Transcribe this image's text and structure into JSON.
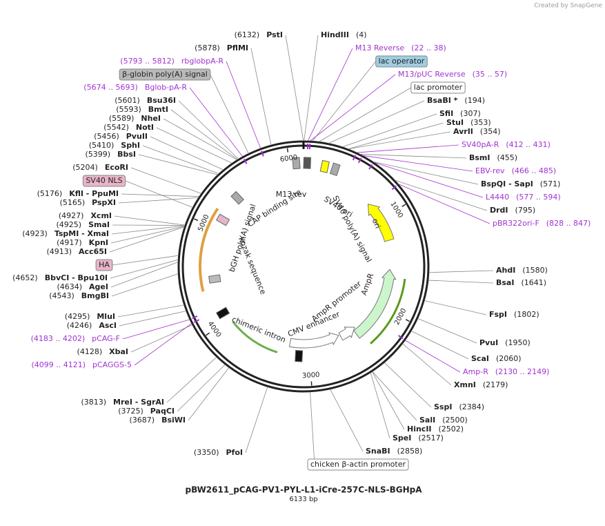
{
  "header": {
    "credit": "Created by SnapGene"
  },
  "map": {
    "labels": [
      {
        "kind": "enzyme",
        "side": "right",
        "name": "HindIII",
        "site": {
          "value": 4,
          "label": "(4)"
        }
      },
      {
        "kind": "primer",
        "side": "right",
        "name": "M13 Reverse",
        "range": "(22 .. 38)"
      },
      {
        "kind": "feature",
        "name": "lac operator",
        "color": "#9fcde2"
      },
      {
        "kind": "primer",
        "side": "right",
        "name": "M13/pUC Reverse",
        "range": "(35 .. 57)"
      },
      {
        "kind": "feature",
        "name": "lac promoter",
        "color": "#ffffff"
      },
      {
        "kind": "enzyme",
        "side": "right",
        "name": "BsaBI *",
        "site": {
          "value": 194,
          "label": "(194)"
        }
      },
      {
        "kind": "enzyme",
        "side": "right",
        "name": "SfiI",
        "site": {
          "value": 307,
          "label": "(307)"
        }
      },
      {
        "kind": "enzyme",
        "side": "right",
        "name": "StuI",
        "site": {
          "value": 353,
          "label": "(353)"
        }
      },
      {
        "kind": "enzyme",
        "side": "right",
        "name": "AvrII",
        "site": {
          "value": 354,
          "label": "(354)"
        }
      },
      {
        "kind": "primer",
        "side": "right",
        "name": "SV40pA-R",
        "range": "(412 .. 431)"
      },
      {
        "kind": "enzyme",
        "side": "right",
        "name": "BsmI",
        "site": {
          "value": 455,
          "label": "(455)"
        }
      },
      {
        "kind": "primer",
        "side": "right",
        "name": "EBV-rev",
        "range": "(466 .. 485)"
      },
      {
        "kind": "enzyme",
        "side": "right",
        "name": "BspQI - SapI",
        "site": {
          "value": 571,
          "label": "(571)"
        }
      },
      {
        "kind": "primer",
        "side": "right",
        "name": "L4440",
        "range": "(577 .. 594)"
      },
      {
        "kind": "enzyme",
        "side": "right",
        "name": "DrdI",
        "site": {
          "value": 795,
          "label": "(795)"
        }
      },
      {
        "kind": "primer",
        "side": "right",
        "name": "pBR322ori-F",
        "range": "(828 .. 847)"
      },
      {
        "kind": "enzyme",
        "side": "right",
        "name": "AhdI",
        "site": {
          "value": 1580,
          "label": "(1580)"
        }
      },
      {
        "kind": "enzyme",
        "side": "right",
        "name": "BsaI",
        "site": {
          "value": 1641,
          "label": "(1641)"
        }
      },
      {
        "kind": "enzyme",
        "side": "right",
        "name": "FspI",
        "site": {
          "value": 1802,
          "label": "(1802)"
        }
      },
      {
        "kind": "enzyme",
        "side": "right",
        "name": "PvuI",
        "site": {
          "value": 1950,
          "label": "(1950)"
        }
      },
      {
        "kind": "enzyme",
        "side": "right",
        "name": "ScaI",
        "site": {
          "value": 2060,
          "label": "(2060)"
        }
      },
      {
        "kind": "primer",
        "side": "right",
        "name": "Amp-R",
        "range": "(2130 .. 2149)"
      },
      {
        "kind": "enzyme",
        "side": "right",
        "name": "XmnI",
        "site": {
          "value": 2179,
          "label": "(2179)"
        }
      },
      {
        "kind": "enzyme",
        "side": "right",
        "name": "SspI",
        "site": {
          "value": 2384,
          "label": "(2384)"
        }
      },
      {
        "kind": "enzyme",
        "side": "right",
        "name": "SalI",
        "site": {
          "value": 2500,
          "label": "(2500)"
        }
      },
      {
        "kind": "enzyme",
        "side": "right",
        "name": "HincII",
        "site": {
          "value": 2502,
          "label": "(2502)"
        }
      },
      {
        "kind": "enzyme",
        "side": "right",
        "name": "SpeI",
        "site": {
          "value": 2517,
          "label": "(2517)"
        }
      },
      {
        "kind": "enzyme",
        "side": "right",
        "name": "SnaBI",
        "site": {
          "value": 2858,
          "label": "(2858)"
        }
      },
      {
        "kind": "feature",
        "name": "chicken β-actin promoter",
        "color": "#ffffff"
      },
      {
        "kind": "enzyme",
        "side": "left",
        "name": "PfoI",
        "site": {
          "value": 3350,
          "label": "(3350)"
        }
      },
      {
        "kind": "enzyme",
        "side": "left",
        "name": "PstI",
        "site": {
          "value": 6132,
          "label": "(6132)"
        }
      },
      {
        "kind": "enzyme",
        "side": "left",
        "name": "PflMI",
        "site": {
          "value": 5878,
          "label": "(5878)"
        }
      },
      {
        "kind": "primer",
        "side": "left",
        "name": "rbglobpA-R",
        "range": "(5793 .. 5812)"
      },
      {
        "kind": "feature",
        "name": "β-globin poly(A) signal",
        "color": "#b9b9b9"
      },
      {
        "kind": "primer",
        "side": "left",
        "name": "Bglob-pA-R",
        "range": "(5674 .. 5693)"
      },
      {
        "kind": "enzyme",
        "side": "left",
        "name": "Bsu36I",
        "site": {
          "value": 5601,
          "label": "(5601)"
        }
      },
      {
        "kind": "enzyme",
        "side": "left",
        "name": "BmtI",
        "site": {
          "value": 5593,
          "label": "(5593)"
        }
      },
      {
        "kind": "enzyme",
        "side": "left",
        "name": "NheI",
        "site": {
          "value": 5589,
          "label": "(5589)"
        }
      },
      {
        "kind": "enzyme",
        "side": "left",
        "name": "NotI",
        "site": {
          "value": 5542,
          "label": "(5542)"
        }
      },
      {
        "kind": "enzyme",
        "side": "left",
        "name": "PvuII",
        "site": {
          "value": 5456,
          "label": "(5456)"
        }
      },
      {
        "kind": "enzyme",
        "side": "left",
        "name": "SphI",
        "site": {
          "value": 5410,
          "label": "(5410)"
        }
      },
      {
        "kind": "enzyme",
        "side": "left",
        "name": "BbsI",
        "site": {
          "value": 5399,
          "label": "(5399)"
        }
      },
      {
        "kind": "enzyme",
        "side": "left",
        "name": "EcoRI",
        "site": {
          "value": 5204,
          "label": "(5204)"
        }
      },
      {
        "kind": "feature",
        "name": "SV40 NLS",
        "color": "#e8b4c8"
      },
      {
        "kind": "enzyme",
        "side": "left",
        "name": "KflI - PpuMI",
        "site": {
          "value": 5176,
          "label": "(5176)"
        }
      },
      {
        "kind": "enzyme",
        "side": "left",
        "name": "PspXI",
        "site": {
          "value": 5165,
          "label": "(5165)"
        }
      },
      {
        "kind": "enzyme",
        "side": "left",
        "name": "XcmI",
        "site": {
          "value": 4927,
          "label": "(4927)"
        }
      },
      {
        "kind": "enzyme",
        "side": "left",
        "name": "SmaI",
        "site": {
          "value": 4925,
          "label": "(4925)"
        }
      },
      {
        "kind": "enzyme",
        "side": "left",
        "name": "TspMI - XmaI",
        "site": {
          "value": 4923,
          "label": "(4923)"
        }
      },
      {
        "kind": "enzyme",
        "side": "left",
        "name": "KpnI",
        "site": {
          "value": 4917,
          "label": "(4917)"
        }
      },
      {
        "kind": "enzyme",
        "side": "left",
        "name": "Acc65I",
        "site": {
          "value": 4913,
          "label": "(4913)"
        }
      },
      {
        "kind": "feature",
        "name": "HA",
        "color": "#e8b4c8"
      },
      {
        "kind": "enzyme",
        "side": "left",
        "name": "BbvCI - Bpu10I",
        "site": {
          "value": 4652,
          "label": "(4652)"
        }
      },
      {
        "kind": "enzyme",
        "side": "left",
        "name": "AgeI",
        "site": {
          "value": 4634,
          "label": "(4634)"
        }
      },
      {
        "kind": "enzyme",
        "side": "left",
        "name": "BmgBI",
        "site": {
          "value": 4543,
          "label": "(4543)"
        }
      },
      {
        "kind": "enzyme",
        "side": "left",
        "name": "MluI",
        "site": {
          "value": 4295,
          "label": "(4295)"
        }
      },
      {
        "kind": "enzyme",
        "side": "left",
        "name": "AscI",
        "site": {
          "value": 4246,
          "label": "(4246)"
        }
      },
      {
        "kind": "primer",
        "side": "left",
        "name": "pCAG-F",
        "range": "(4183 .. 4202)"
      },
      {
        "kind": "enzyme",
        "side": "left",
        "name": "XbaI",
        "site": {
          "value": 4128,
          "label": "(4128)"
        }
      },
      {
        "kind": "primer",
        "side": "left",
        "name": "pCAGGS-5",
        "range": "(4099 .. 4121)"
      },
      {
        "kind": "enzyme",
        "side": "left",
        "name": "MreI - SgrAI",
        "site": {
          "value": 3813,
          "label": "(3813)"
        }
      },
      {
        "kind": "enzyme",
        "side": "left",
        "name": "PaqCI",
        "site": {
          "value": 3725,
          "label": "(3725)"
        }
      },
      {
        "kind": "enzyme",
        "side": "left",
        "name": "BsiWI",
        "site": {
          "value": 3687,
          "label": "(3687)"
        }
      }
    ],
    "inner_labels": [
      "M13 rev",
      "CAP binding site",
      "SV40 poly(A) signal",
      "SV40 ori",
      "ori",
      "AmpR",
      "AmpR promoter",
      "CMV enhancer",
      "chimeric intron",
      "Kozak sequence",
      "bGH poly(A) signal"
    ],
    "ticks": [
      1000,
      2000,
      3000,
      4000,
      5000,
      6000
    ]
  },
  "footer": {
    "title": "pBW2611_pCAG-PV1-PYL-L1-iCre-257C-NLS-BGHpA",
    "length": {
      "value": 6133,
      "label": "6133 bp"
    }
  }
}
